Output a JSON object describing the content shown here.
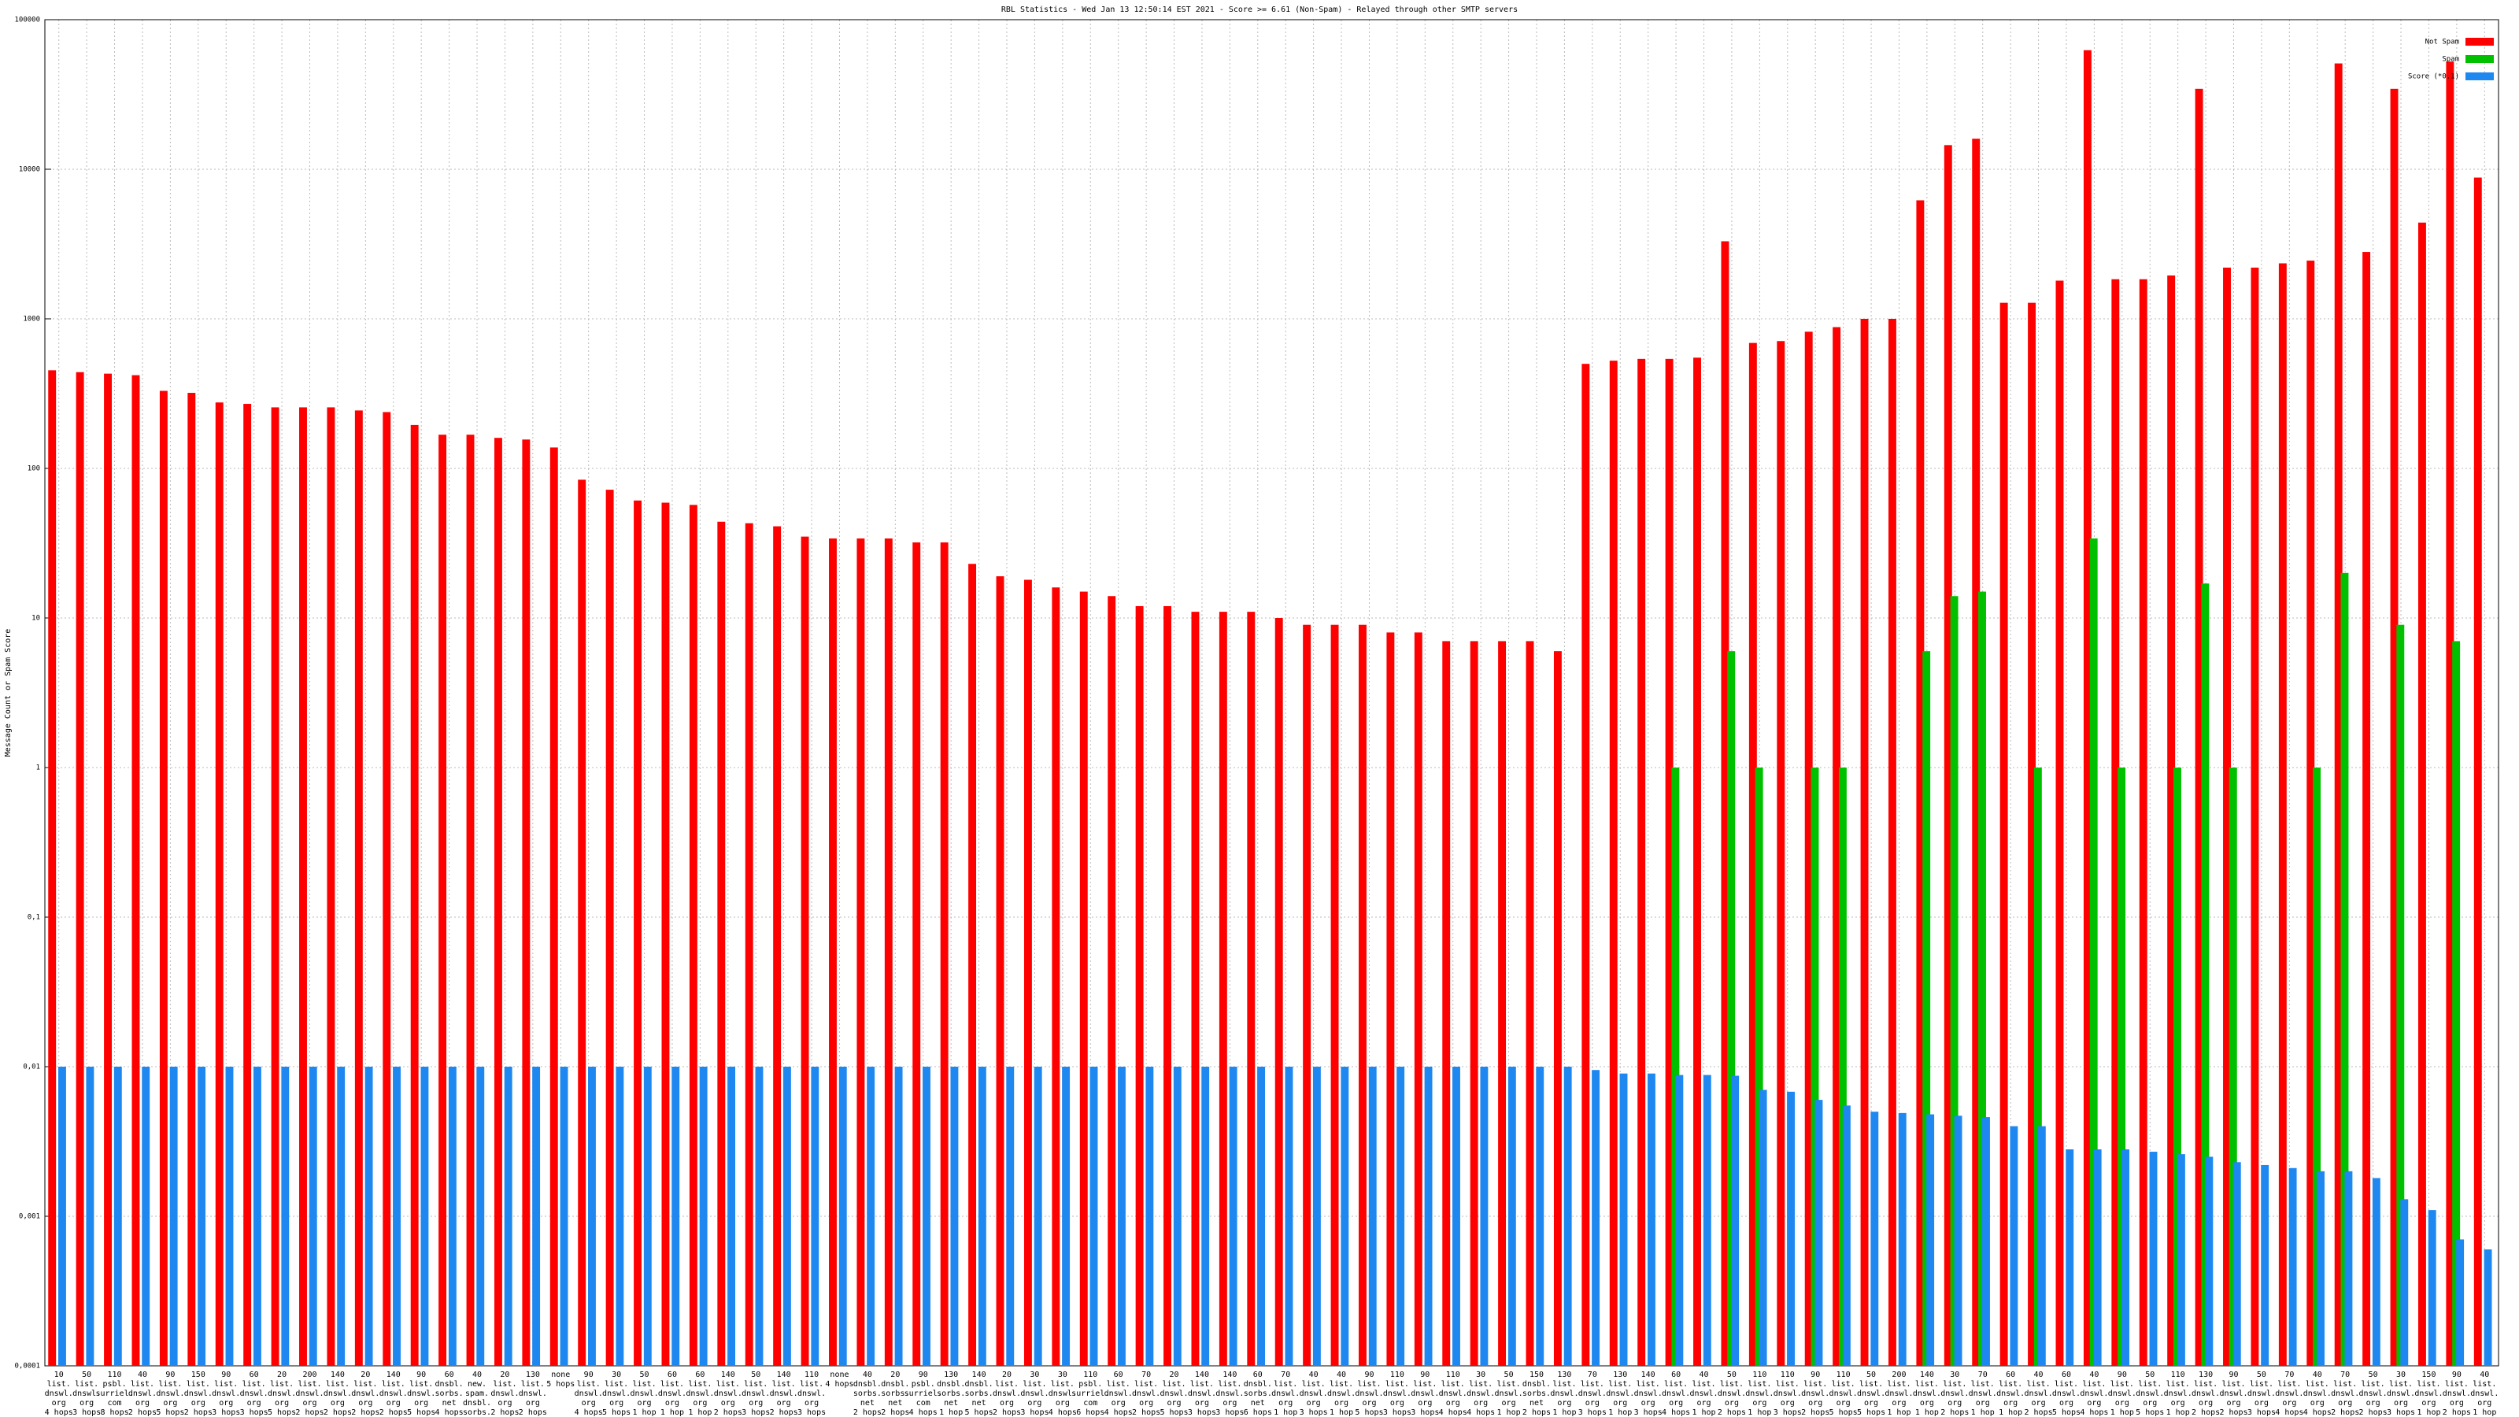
{
  "chart_data": {
    "type": "bar",
    "title": "RBL Statistics - Wed Jan 13 12:50:14 EST 2021 - Score >= 6.61 (Non-Spam) - Relayed through other SMTP servers",
    "y_label": "Message Count or Spam Score",
    "log_scale": true,
    "grid": true,
    "legend": "top-right",
    "ylim": [
      0.0001,
      100000
    ],
    "yticks": [
      {
        "value": 0.0001,
        "label": "0,0001"
      },
      {
        "value": 0.001,
        "label": "0,001"
      },
      {
        "value": 0.01,
        "label": "0,01"
      },
      {
        "value": 0.1,
        "label": "0,1"
      },
      1,
      10,
      100,
      1000,
      10000,
      100000
    ],
    "categories": [
      "10\nlist.\ndnswl.\norg\n4 hops",
      "50\nlist.\ndnswl.\norg\n3 hops",
      "110\npsbl.\nsurriel.\ncom\n8 hops",
      "40\nlist.\ndnswl.\norg\n2 hops",
      "90\nlist.\ndnswl.\norg\n5 hops",
      "150\nlist.\ndnswl.\norg\n2 hops",
      "90\nlist.\ndnswl.\norg\n3 hops",
      "60\nlist.\ndnswl.\norg\n3 hops",
      "20\nlist.\ndnswl.\norg\n5 hops",
      "200\nlist.\ndnswl.\norg\n2 hops",
      "140\nlist.\ndnswl.\norg\n2 hops",
      "20\nlist.\ndnswl.\norg\n2 hops",
      "140\nlist.\ndnswl.\norg\n2 hops",
      "90\nlist.\ndnswl.\norg\n5 hops",
      "60\ndnsbl.\nsorbs.\nnet\n4 hops",
      "40\nnew.\nspam.\ndnsbl.\nsorbs.\nnet\n4 hops",
      "20\nlist.\ndnswl.\norg\n2 hops",
      "130\nlist.\ndnswl.\norg\n2 hops",
      "none\n5 hops",
      "90\nlist.\ndnswl.\norg\n4 hops",
      "30\nlist.\ndnswl.\norg\n5 hops",
      "50\nlist.\ndnswl.\norg\n1 hop",
      "60\nlist.\ndnswl.\norg\n1 hop",
      "60\nlist.\ndnswl.\norg\n1 hop",
      "140\nlist.\ndnswl.\norg\n2 hops",
      "50\nlist.\ndnswl.\norg\n3 hops",
      "140\nlist.\ndnswl.\norg\n2 hops",
      "110\nlist.\ndnswl.\norg\n3 hops",
      "none\n4 hops",
      "40\ndnsbl.\nsorbs.\nnet\n2 hops",
      "20\ndnsbl.\nsorbs.\nnet\n2 hops",
      "90\npsbl.\nsurriel.\ncom\n4 hops",
      "130\ndnsbl.\nsorbs.\nnet\n1 hop",
      "140\ndnsbl.\nsorbs.\nnet\n5 hops",
      "20\nlist.\ndnswl.\norg\n2 hops",
      "30\nlist.\ndnswl.\norg\n3 hops",
      "30\nlist.\ndnswl.\norg\n4 hops",
      "110\npsbl.\nsurriel.\ncom\n6 hops",
      "60\nlist.\ndnswl.\norg\n4 hops",
      "70\nlist.\ndnswl.\norg\n2 hops",
      "20\nlist.\ndnswl.\norg\n5 hops",
      "140\nlist.\ndnswl.\norg\n3 hops",
      "140\nlist.\ndnswl.\norg\n3 hops",
      "60\ndnsbl.\nsorbs.\nnet\n6 hops",
      "70\nlist.\ndnswl.\norg\n1 hop",
      "40\nlist.\ndnswl.\norg\n3 hops",
      "40\nlist.\ndnswl.\norg\n1 hop",
      "90\nlist.\ndnswl.\norg\n5 hops",
      "110\nlist.\ndnswl.\norg\n3 hops",
      "90\nlist.\ndnswl.\norg\n3 hops",
      "110\nlist.\ndnswl.\norg\n4 hops",
      "30\nlist.\ndnswl.\norg\n4 hops",
      "50\nlist.\ndnswl.\norg\n1 hop",
      "150\ndnsbl.\nsorbs.\nnet\n2 hops",
      "130\nlist.\ndnswl.\norg\n1 hop",
      "70\nlist.\ndnswl.\norg\n3 hops",
      "130\nlist.\ndnswl.\norg\n1 hop",
      "140\nlist.\ndnswl.\norg\n3 hops",
      "60\nlist.\ndnswl.\norg\n4 hops",
      "40\nlist.\ndnswl.\norg\n1 hop",
      "50\nlist.\ndnswl.\norg\n2 hops",
      "110\nlist.\ndnswl.\norg\n1 hop",
      "110\nlist.\ndnswl.\norg\n3 hops",
      "90\nlist.\ndnswl.\norg\n2 hops",
      "110\nlist.\ndnswl.\norg\n5 hops",
      "50\nlist.\ndnswl.\norg\n5 hops",
      "200\nlist.\ndnswl.\norg\n1 hop",
      "140\nlist.\ndnswl.\norg\n1 hop",
      "30\nlist.\ndnswl.\norg\n2 hops",
      "70\nlist.\ndnswl.\norg\n1 hop",
      "60\nlist.\ndnswl.\norg\n1 hop",
      "40\nlist.\ndnswl.\norg\n2 hops",
      "60\nlist.\ndnswl.\norg\n5 hops",
      "40\nlist.\ndnswl.\norg\n4 hops",
      "90\nlist.\ndnswl.\norg\n1 hop",
      "50\nlist.\ndnswl.\norg\n5 hops",
      "110\nlist.\ndnswl.\norg\n1 hop",
      "130\nlist.\ndnswl.\norg\n2 hops",
      "90\nlist.\ndnswl.\norg\n2 hops",
      "50\nlist.\ndnswl.\norg\n3 hops",
      "70\nlist.\ndnswl.\norg\n4 hops",
      "40\nlist.\ndnswl.\norg\n4 hops",
      "70\nlist.\ndnswl.\norg\n2 hops",
      "50\nlist.\ndnswl.\norg\n2 hops",
      "30\nlist.\ndnswl.\norg\n3 hops",
      "150\nlist.\ndnswl.\norg\n1 hop",
      "90\nlist.\ndnswl.\norg\n2 hops",
      "40\nlist.\ndnswl.\norg\n1 hop"
    ],
    "series": [
      {
        "name": "Not Spam",
        "color": "#ff0000",
        "values": [
          453,
          440,
          430,
          420,
          330,
          320,
          276,
          270,
          256,
          256,
          256,
          244,
          238,
          195,
          168,
          168,
          160,
          156,
          138,
          84,
          72,
          61,
          59,
          57,
          44,
          43,
          41,
          35,
          34,
          34,
          34,
          32,
          32,
          23,
          19,
          18,
          16,
          15,
          14,
          12,
          12,
          11,
          11,
          11,
          10,
          9,
          9,
          9,
          8,
          8,
          7,
          7,
          7,
          7,
          6,
          500,
          525,
          540,
          540,
          550,
          3300,
          690,
          710,
          820,
          880,
          1000,
          1000,
          6200,
          14500,
          16000,
          1280,
          1280,
          1800,
          62500,
          1840,
          1840,
          1950,
          34500,
          2200,
          2200,
          2350,
          2450,
          51000,
          2800,
          34500,
          4400,
          52500,
          8800
        ]
      },
      {
        "name": "Spam",
        "color": "#00c000",
        "values": [
          null,
          null,
          null,
          null,
          null,
          null,
          null,
          null,
          null,
          null,
          null,
          null,
          null,
          null,
          null,
          null,
          null,
          null,
          null,
          null,
          null,
          null,
          null,
          null,
          null,
          null,
          null,
          null,
          null,
          null,
          null,
          null,
          null,
          null,
          null,
          null,
          null,
          null,
          null,
          null,
          null,
          null,
          null,
          null,
          null,
          null,
          null,
          null,
          null,
          null,
          null,
          null,
          null,
          null,
          null,
          null,
          null,
          null,
          1,
          null,
          6,
          1,
          null,
          1,
          1,
          null,
          null,
          6,
          14,
          15,
          null,
          1,
          null,
          34,
          1,
          null,
          1,
          17,
          1,
          null,
          null,
          1,
          20,
          null,
          9,
          null,
          7,
          null
        ]
      },
      {
        "name": "Score (*0.1)",
        "color": "#1e88f0",
        "values": [
          0.01,
          0.01,
          0.01,
          0.01,
          0.01,
          0.01,
          0.01,
          0.01,
          0.01,
          0.01,
          0.01,
          0.01,
          0.01,
          0.01,
          0.01,
          0.01,
          0.01,
          0.01,
          0.01,
          0.01,
          0.01,
          0.01,
          0.01,
          0.01,
          0.01,
          0.01,
          0.01,
          0.01,
          0.01,
          0.01,
          0.01,
          0.01,
          0.01,
          0.01,
          0.01,
          0.01,
          0.01,
          0.01,
          0.01,
          0.01,
          0.01,
          0.01,
          0.01,
          0.01,
          0.01,
          0.01,
          0.01,
          0.01,
          0.01,
          0.01,
          0.01,
          0.01,
          0.01,
          0.01,
          0.01,
          0.0095,
          0.009,
          0.009,
          0.0088,
          0.0088,
          0.0087,
          0.007,
          0.0068,
          0.006,
          0.0055,
          0.005,
          0.0049,
          0.0048,
          0.0047,
          0.0046,
          0.004,
          0.004,
          0.0028,
          0.0028,
          0.0028,
          0.0027,
          0.0026,
          0.0025,
          0.0023,
          0.0022,
          0.0021,
          0.002,
          0.002,
          0.0018,
          0.0013,
          0.0011,
          0.0007,
          0.0006
        ]
      }
    ]
  }
}
